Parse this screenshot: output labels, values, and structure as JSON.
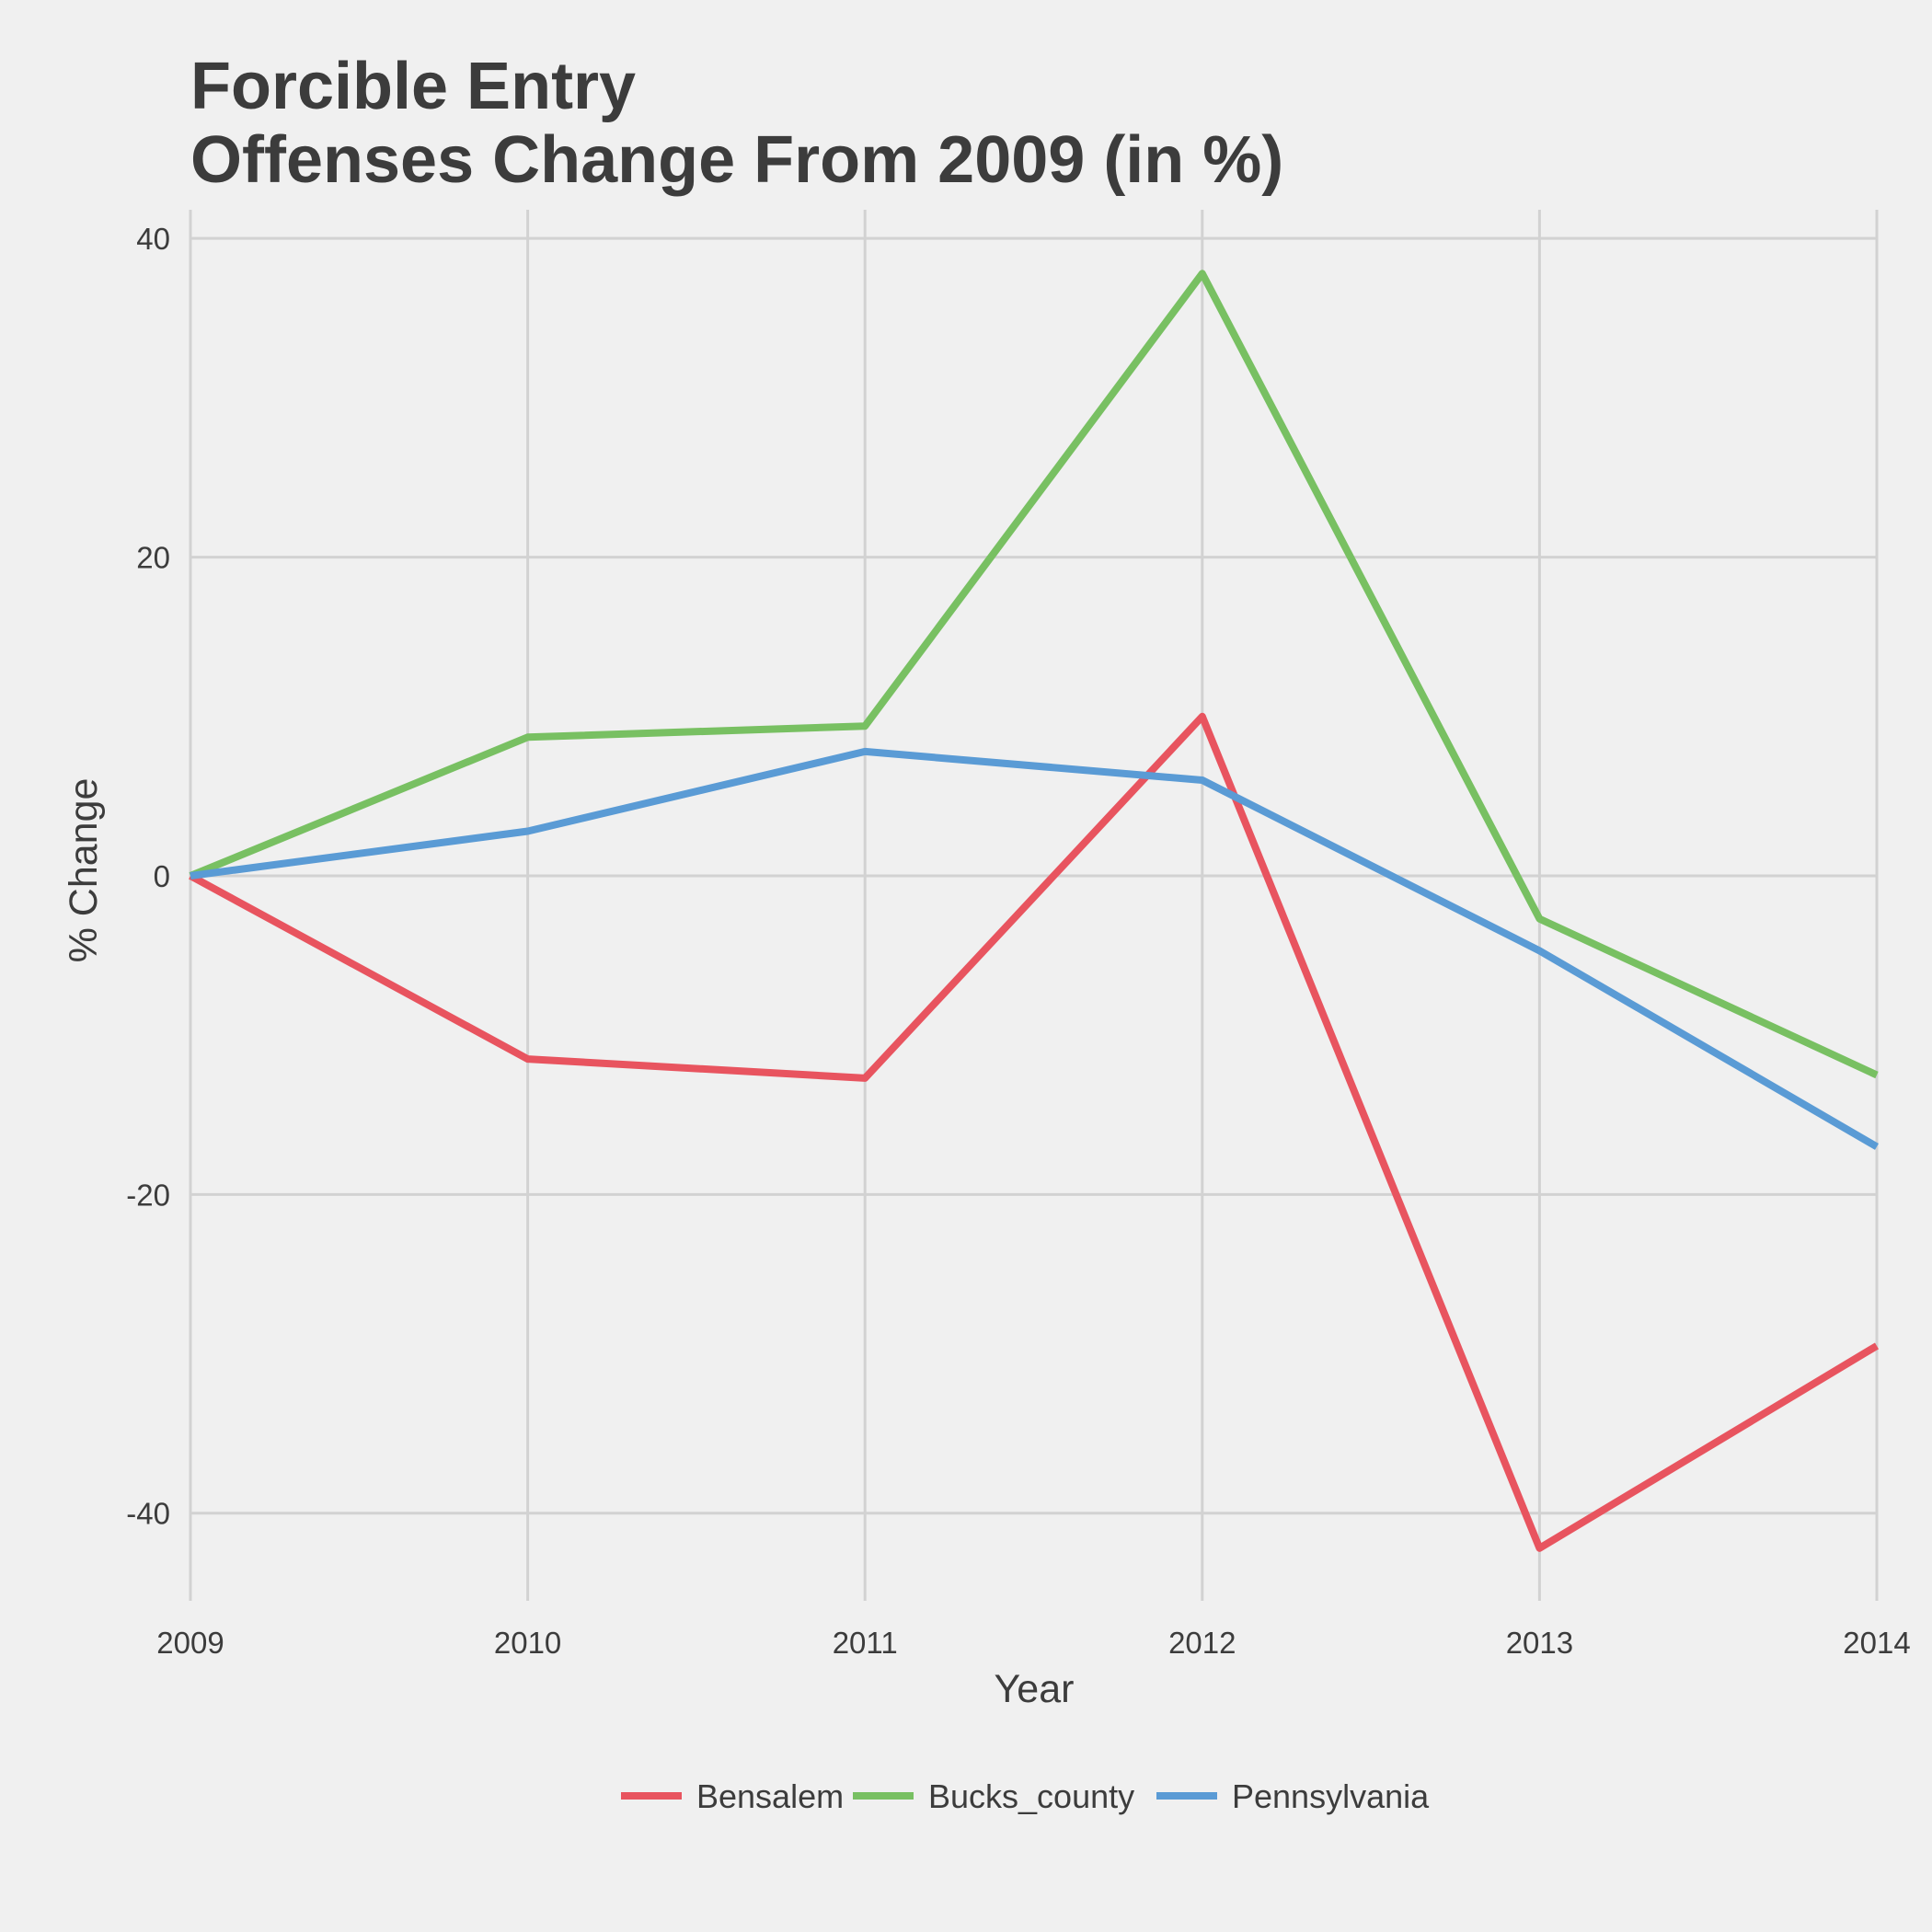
{
  "chart_data": {
    "type": "line",
    "title_lines": [
      "Forcible Entry",
      "Offenses Change From 2009 (in %)"
    ],
    "xlabel": "Year",
    "ylabel": "% Change",
    "x": [
      2009,
      2010,
      2011,
      2012,
      2013,
      2014
    ],
    "x_tick_labels": [
      "2009",
      "2010",
      "2011",
      "2012",
      "2013",
      "2014"
    ],
    "y_ticks": [
      -40,
      -20,
      0,
      20,
      40
    ],
    "y_tick_labels": [
      "-40",
      "-20",
      "0",
      "20",
      "40"
    ],
    "xlim": [
      2009,
      2014
    ],
    "ylim": [
      -45.5,
      41.8
    ],
    "grid": true,
    "legend_position": "bottom",
    "series": [
      {
        "name": "Bensalem",
        "color": "#e8545f",
        "values": [
          0,
          -11.5,
          -12.7,
          10.0,
          -42.2,
          -29.5
        ]
      },
      {
        "name": "Bucks_county",
        "color": "#78c062",
        "values": [
          0,
          8.7,
          9.4,
          37.8,
          -2.7,
          -12.5
        ]
      },
      {
        "name": "Pennsylvania",
        "color": "#5a9bd5",
        "values": [
          0,
          2.8,
          7.8,
          6.0,
          -4.7,
          -17.0
        ]
      }
    ]
  }
}
